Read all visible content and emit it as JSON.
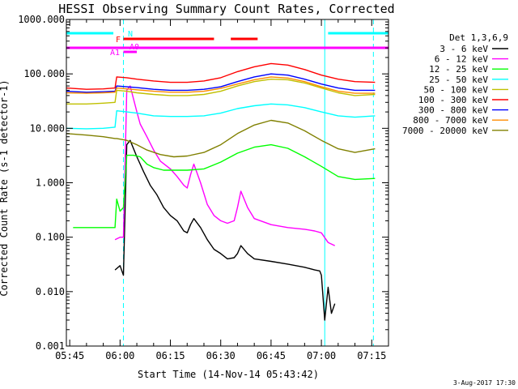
{
  "chart_data": {
    "type": "line",
    "title": "HESSI Observing Summary Count Rates, Corrected",
    "xlabel": "Start Time (14-Nov-14 05:43:42)",
    "ylabel": "Corrected Count Rate (s-1 detector-1)",
    "y_scale": "log",
    "ylim": [
      0.001,
      1000
    ],
    "xlim_minutes": [
      344,
      440
    ],
    "x_ticks": [
      {
        "t": 345,
        "label": "05:45"
      },
      {
        "t": 360,
        "label": "06:00"
      },
      {
        "t": 375,
        "label": "06:15"
      },
      {
        "t": 390,
        "label": "06:30"
      },
      {
        "t": 405,
        "label": "06:45"
      },
      {
        "t": 420,
        "label": "07:00"
      },
      {
        "t": 435,
        "label": "07:15"
      }
    ],
    "y_ticks": [
      {
        "v": 1000,
        "label": "1000.000"
      },
      {
        "v": 100,
        "label": "100.000"
      },
      {
        "v": 10,
        "label": "10.000"
      },
      {
        "v": 1,
        "label": "1.000"
      },
      {
        "v": 0.1,
        "label": "0.100"
      },
      {
        "v": 0.01,
        "label": "0.010"
      },
      {
        "v": 0.001,
        "label": "0.001"
      }
    ],
    "legend_title": "Det 1,3,6,9",
    "legend_position": "right",
    "series": [
      {
        "name": "3 - 6 keV",
        "color": "#000000",
        "x": [
          358.5,
          360,
          361,
          362,
          363,
          365,
          367,
          369,
          371,
          373,
          375,
          377,
          379,
          380,
          381,
          382,
          384,
          386,
          388,
          390,
          392,
          394,
          395,
          396,
          398,
          400,
          405,
          410,
          415,
          418,
          419.5,
          420,
          421,
          422,
          423,
          424
        ],
        "y": [
          0.025,
          0.03,
          0.02,
          5,
          6,
          3,
          1.6,
          0.9,
          0.6,
          0.35,
          0.25,
          0.2,
          0.13,
          0.12,
          0.17,
          0.22,
          0.15,
          0.09,
          0.06,
          0.05,
          0.04,
          0.042,
          0.05,
          0.07,
          0.05,
          0.04,
          0.036,
          0.032,
          0.028,
          0.025,
          0.024,
          0.02,
          0.003,
          0.012,
          0.004,
          0.006
        ]
      },
      {
        "name": "6 - 12 keV",
        "color": "#ff00ff",
        "x": [
          358.5,
          360,
          361,
          362,
          363,
          364,
          365,
          366,
          368,
          370,
          372,
          375,
          377,
          379,
          380,
          381,
          382,
          384,
          386,
          388,
          390,
          392,
          394,
          395,
          396,
          398,
          400,
          405,
          410,
          415,
          418,
          420,
          422,
          424
        ],
        "y": [
          0.09,
          0.1,
          0.1,
          50,
          60,
          35,
          20,
          12,
          7,
          4,
          2.5,
          1.8,
          1.3,
          0.9,
          0.8,
          1.4,
          2.2,
          1.0,
          0.4,
          0.25,
          0.2,
          0.18,
          0.2,
          0.35,
          0.7,
          0.35,
          0.22,
          0.17,
          0.15,
          0.14,
          0.13,
          0.12,
          0.08,
          0.07
        ]
      },
      {
        "name": "12 - 25 keV",
        "color": "#00ff00",
        "x": [
          346,
          352,
          358.5,
          359,
          360,
          361,
          362,
          364,
          366,
          368,
          370,
          373,
          376,
          380,
          385,
          390,
          395,
          400,
          405,
          410,
          415,
          420,
          425,
          430,
          436
        ],
        "y": [
          0.15,
          0.15,
          0.15,
          0.5,
          0.3,
          0.35,
          3.2,
          3.2,
          3,
          2.2,
          1.9,
          1.7,
          1.7,
          1.7,
          1.8,
          2.4,
          3.5,
          4.5,
          5,
          4.3,
          3,
          2,
          1.3,
          1.15,
          1.2
        ]
      },
      {
        "name": "25 - 50 keV",
        "color": "#00ffff",
        "x": [
          344,
          350,
          355,
          358.5,
          359,
          362,
          365,
          370,
          375,
          380,
          385,
          390,
          395,
          400,
          405,
          410,
          415,
          420,
          425,
          430,
          436
        ],
        "y": [
          10,
          9.8,
          10,
          10.5,
          21,
          20,
          19,
          17,
          16.5,
          16.5,
          17,
          19,
          23,
          26,
          28,
          27,
          24,
          20,
          17,
          16,
          17
        ]
      },
      {
        "name": "50 - 100 keV",
        "color": "#c0c000",
        "x": [
          344,
          350,
          355,
          358.5,
          359,
          362,
          365,
          370,
          375,
          380,
          385,
          390,
          395,
          400,
          405,
          410,
          415,
          420,
          425,
          430,
          436
        ],
        "y": [
          28,
          28,
          29,
          30,
          50,
          48,
          45,
          42,
          40,
          40,
          42,
          48,
          60,
          72,
          80,
          78,
          68,
          55,
          45,
          40,
          42
        ]
      },
      {
        "name": "100 - 300 keV",
        "color": "#ff0000",
        "x": [
          344,
          350,
          355,
          358.5,
          359,
          362,
          365,
          370,
          375,
          380,
          385,
          390,
          395,
          400,
          405,
          410,
          415,
          420,
          425,
          430,
          436
        ],
        "y": [
          55,
          52,
          53,
          55,
          88,
          85,
          80,
          74,
          70,
          70,
          74,
          85,
          110,
          135,
          155,
          145,
          120,
          95,
          80,
          72,
          70
        ]
      },
      {
        "name": "300 - 800 keV",
        "color": "#0000ff",
        "x": [
          344,
          350,
          355,
          358.5,
          359,
          362,
          365,
          370,
          375,
          380,
          385,
          390,
          395,
          400,
          405,
          410,
          415,
          420,
          425,
          430,
          436
        ],
        "y": [
          48,
          46,
          47,
          48,
          60,
          58,
          56,
          52,
          50,
          50,
          52,
          58,
          72,
          88,
          100,
          95,
          80,
          65,
          55,
          50,
          50
        ]
      },
      {
        "name": "800 - 7000 keV",
        "color": "#ff8c00",
        "x": [
          344,
          350,
          355,
          358.5,
          359,
          362,
          365,
          370,
          375,
          380,
          385,
          390,
          395,
          400,
          405,
          410,
          415,
          420,
          425,
          430,
          436
        ],
        "y": [
          45,
          44,
          45,
          46,
          55,
          53,
          51,
          48,
          46,
          46,
          48,
          54,
          65,
          78,
          88,
          84,
          72,
          58,
          48,
          44,
          44
        ]
      },
      {
        "name": "7000 - 20000 keV",
        "color": "#808000",
        "x": [
          344,
          350,
          355,
          358.5,
          359,
          362,
          365,
          368,
          372,
          376,
          380,
          385,
          390,
          395,
          400,
          405,
          410,
          415,
          420,
          425,
          430,
          436
        ],
        "y": [
          8,
          7.5,
          7,
          6.5,
          6.5,
          6,
          5,
          4,
          3.3,
          3,
          3.1,
          3.6,
          5,
          8,
          11.5,
          14,
          12.5,
          9,
          6,
          4.2,
          3.6,
          4.2
        ]
      }
    ],
    "flag_bars": [
      {
        "label": "N",
        "color": "#00ffff",
        "segments": [
          [
            344,
            358
          ],
          [
            422,
            440
          ]
        ]
      },
      {
        "label": "F",
        "color": "#ff0000",
        "segments": [
          [
            361,
            388
          ],
          [
            393,
            401
          ]
        ]
      },
      {
        "label": "",
        "color": "#ff00ff",
        "segments": [
          [
            344,
            440
          ]
        ]
      },
      {
        "label": "A1",
        "color": "#ff00ff",
        "segments": [
          [
            361,
            365
          ]
        ]
      },
      {
        "label": "A0",
        "color": "#ff00ff",
        "segments": []
      }
    ],
    "vertical_lines": [
      {
        "t": 344,
        "style": "dashed",
        "color": "#00ffff"
      },
      {
        "t": 361,
        "style": "dashed",
        "color": "#00ffff"
      },
      {
        "t": 421,
        "style": "solid",
        "color": "#00ffff"
      },
      {
        "t": 435.5,
        "style": "dashed",
        "color": "#00ffff"
      }
    ]
  },
  "footer": {
    "timestamp": "3-Aug-2017 17:30"
  }
}
